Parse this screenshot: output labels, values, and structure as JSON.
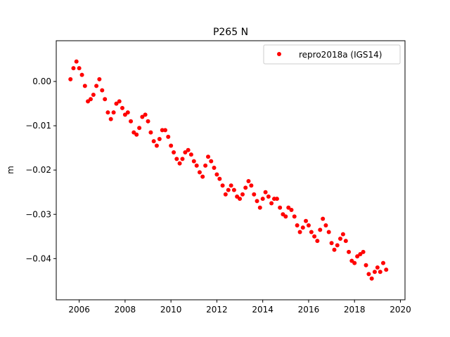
{
  "chart_data": {
    "type": "scatter",
    "title": "P265 N",
    "xlabel": "",
    "ylabel": "m",
    "xlim": [
      2005.0,
      2020.2
    ],
    "ylim": [
      -0.0493,
      0.0092
    ],
    "x_ticks": [
      2006,
      2008,
      2010,
      2012,
      2014,
      2016,
      2018,
      2020
    ],
    "x_tick_labels": [
      "2006",
      "2008",
      "2010",
      "2012",
      "2014",
      "2016",
      "2018",
      "2020"
    ],
    "y_ticks": [
      0.0,
      -0.01,
      -0.02,
      -0.03,
      -0.04
    ],
    "y_tick_labels": [
      "0.00",
      "−0.01",
      "−0.02",
      "−0.03",
      "−0.04"
    ],
    "grid": false,
    "legend_position": "top-right",
    "colors": {
      "series": "#ff0000",
      "axes": "#000000",
      "background": "#ffffff"
    },
    "series": [
      {
        "name": "repro2018a (IGS14)",
        "marker": "circle",
        "x": [
          2005.62,
          2005.75,
          2005.88,
          2006.0,
          2006.12,
          2006.25,
          2006.38,
          2006.5,
          2006.62,
          2006.75,
          2006.88,
          2007.0,
          2007.12,
          2007.25,
          2007.38,
          2007.5,
          2007.62,
          2007.75,
          2007.88,
          2008.0,
          2008.12,
          2008.25,
          2008.38,
          2008.5,
          2008.62,
          2008.75,
          2008.88,
          2009.0,
          2009.12,
          2009.25,
          2009.38,
          2009.5,
          2009.62,
          2009.75,
          2009.88,
          2010.0,
          2010.12,
          2010.25,
          2010.38,
          2010.5,
          2010.62,
          2010.75,
          2010.88,
          2011.0,
          2011.12,
          2011.25,
          2011.38,
          2011.5,
          2011.62,
          2011.75,
          2011.88,
          2012.0,
          2012.12,
          2012.25,
          2012.38,
          2012.5,
          2012.62,
          2012.75,
          2012.88,
          2013.0,
          2013.12,
          2013.25,
          2013.38,
          2013.5,
          2013.62,
          2013.75,
          2013.88,
          2014.0,
          2014.12,
          2014.25,
          2014.38,
          2014.5,
          2014.62,
          2014.75,
          2014.88,
          2015.0,
          2015.12,
          2015.25,
          2015.38,
          2015.5,
          2015.62,
          2015.75,
          2015.88,
          2016.0,
          2016.12,
          2016.25,
          2016.38,
          2016.5,
          2016.62,
          2016.75,
          2016.88,
          2017.0,
          2017.12,
          2017.25,
          2017.38,
          2017.5,
          2017.62,
          2017.75,
          2017.88,
          2018.0,
          2018.12,
          2018.25,
          2018.38,
          2018.5,
          2018.62,
          2018.75,
          2018.88,
          2019.0,
          2019.12,
          2019.25,
          2019.38
        ],
        "y": [
          0.0005,
          0.003,
          0.0045,
          0.003,
          0.0015,
          -0.001,
          -0.0045,
          -0.004,
          -0.003,
          -0.001,
          0.0005,
          -0.002,
          -0.004,
          -0.007,
          -0.0085,
          -0.007,
          -0.005,
          -0.0045,
          -0.006,
          -0.0075,
          -0.007,
          -0.009,
          -0.0115,
          -0.012,
          -0.0105,
          -0.008,
          -0.0075,
          -0.009,
          -0.0115,
          -0.0135,
          -0.0145,
          -0.013,
          -0.011,
          -0.011,
          -0.0125,
          -0.0145,
          -0.016,
          -0.0175,
          -0.0185,
          -0.0175,
          -0.016,
          -0.0155,
          -0.0165,
          -0.018,
          -0.019,
          -0.0205,
          -0.0215,
          -0.019,
          -0.017,
          -0.018,
          -0.0195,
          -0.021,
          -0.022,
          -0.0235,
          -0.0255,
          -0.0245,
          -0.0235,
          -0.0245,
          -0.026,
          -0.0265,
          -0.0255,
          -0.024,
          -0.0225,
          -0.0235,
          -0.0255,
          -0.027,
          -0.0285,
          -0.0265,
          -0.025,
          -0.026,
          -0.0275,
          -0.0265,
          -0.0265,
          -0.0285,
          -0.03,
          -0.0305,
          -0.0285,
          -0.029,
          -0.0305,
          -0.0325,
          -0.034,
          -0.033,
          -0.0315,
          -0.0325,
          -0.034,
          -0.035,
          -0.036,
          -0.0335,
          -0.031,
          -0.0325,
          -0.034,
          -0.0365,
          -0.038,
          -0.037,
          -0.0355,
          -0.0345,
          -0.036,
          -0.0385,
          -0.0405,
          -0.041,
          -0.0395,
          -0.039,
          -0.0385,
          -0.0415,
          -0.0435,
          -0.0445,
          -0.043,
          -0.042,
          -0.043,
          -0.041,
          -0.0425
        ]
      }
    ]
  }
}
